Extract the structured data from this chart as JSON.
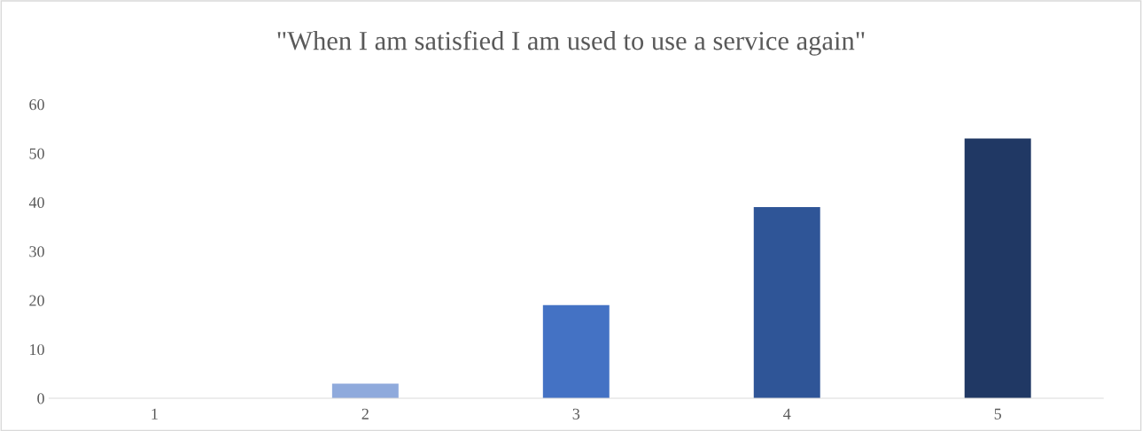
{
  "chart_data": {
    "type": "bar",
    "title": "\"When I am satisfied I am used to use a service again\"",
    "categories": [
      "1",
      "2",
      "3",
      "4",
      "5"
    ],
    "values": [
      0,
      3,
      19,
      39,
      53
    ],
    "colors": [
      "#4472c4",
      "#8faadc",
      "#4472c4",
      "#2f5597",
      "#203864"
    ],
    "ylim": [
      0,
      60
    ],
    "yticks": [
      0,
      10,
      20,
      30,
      40,
      50,
      60
    ],
    "grid": false,
    "legend": false
  }
}
